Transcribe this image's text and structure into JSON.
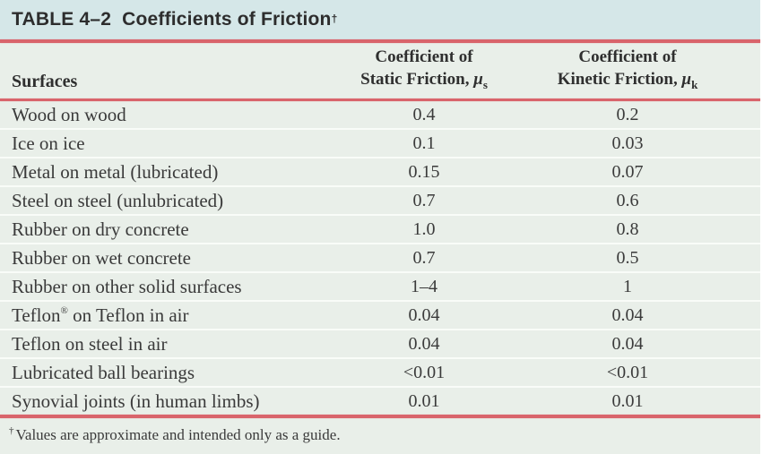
{
  "colors": {
    "title_band": "#d5e7e8",
    "body_bg": "#e9efe9",
    "rule_red": "#d9646b",
    "text": "#333333",
    "row_separator": "#f9fcf8"
  },
  "title": {
    "label": "TABLE 4–2",
    "text": "Coefficients of Friction",
    "sup": "†"
  },
  "columns": {
    "surfaces": "Surfaces",
    "static": {
      "line1": "Coefficient of",
      "line2": "Static Friction, ",
      "symbol": "μ",
      "sub": "s"
    },
    "kinetic": {
      "line1": "Coefficient of",
      "line2": "Kinetic Friction, ",
      "symbol": "μ",
      "sub": "k"
    }
  },
  "chart_data": {
    "type": "table",
    "title": "TABLE 4–2 Coefficients of Friction",
    "columns": [
      "Surfaces",
      "Coefficient of Static Friction, μs",
      "Coefficient of Kinetic Friction, μk"
    ],
    "rows": [
      {
        "surface": "Wood on wood",
        "static": "0.4",
        "kinetic": "0.2"
      },
      {
        "surface": "Ice on ice",
        "static": "0.1",
        "kinetic": "0.03"
      },
      {
        "surface": "Metal on metal (lubricated)",
        "static": "0.15",
        "kinetic": "0.07"
      },
      {
        "surface": "Steel on steel (unlubricated)",
        "static": "0.7",
        "kinetic": "0.6"
      },
      {
        "surface": "Rubber on dry concrete",
        "static": "1.0",
        "kinetic": "0.8"
      },
      {
        "surface": "Rubber on wet concrete",
        "static": "0.7",
        "kinetic": "0.5"
      },
      {
        "surface": "Rubber on other solid surfaces",
        "static": "1–4",
        "kinetic": "1"
      },
      {
        "surface": "Teflon® on Teflon in air",
        "static": "0.04",
        "kinetic": "0.04"
      },
      {
        "surface": "Teflon on steel in air",
        "static": "0.04",
        "kinetic": "0.04"
      },
      {
        "surface": "Lubricated ball bearings",
        "static": "<0.01",
        "kinetic": "<0.01"
      },
      {
        "surface": "Synovial joints (in human limbs)",
        "static": "0.01",
        "kinetic": "0.01"
      }
    ]
  },
  "footnote": {
    "sup": "†",
    "text": "Values are approximate and intended only as a guide."
  }
}
